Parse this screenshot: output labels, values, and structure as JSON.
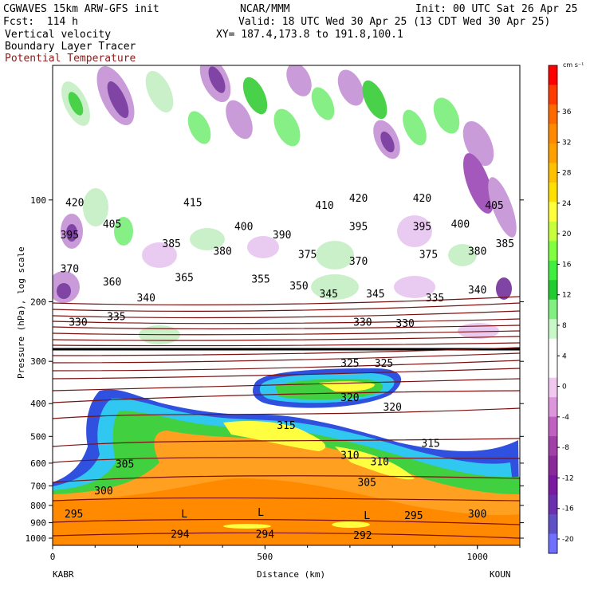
{
  "header": {
    "model": "CGWAVES 15km ARW-GFS init",
    "org": "NCAR/MMM",
    "init": "Init: 00 UTC Sat 26 Apr 25",
    "fcst": "Fcst:  114 h",
    "valid": "Valid: 18 UTC Wed 30 Apr 25 (13 CDT Wed 30 Apr 25)",
    "field1": "Vertical velocity",
    "field2": "Boundary Layer Tracer",
    "field3": "Potential Temperature",
    "xy": "XY= 187.4,173.8 to 191.8,100.1"
  },
  "colors": {
    "theta_line": "#7a1010",
    "field3_text": "#8b1a1a"
  },
  "chart_data": {
    "type": "heatmap",
    "title": "Vertical velocity",
    "xlabel": "Distance (km)",
    "ylabel": "Pressure (hPa), log scale",
    "xlim": [
      0,
      1100
    ],
    "ylim": [
      1050,
      40
    ],
    "x_ticks": [
      0,
      500,
      1000
    ],
    "y_ticks": [
      100,
      200,
      300,
      400,
      500,
      600,
      700,
      800,
      900,
      1000
    ],
    "endpoints": {
      "left": "KABR",
      "right": "KOUN"
    },
    "colorbar": {
      "unit": "cm s⁻¹",
      "tick_labels": [
        "36",
        "32",
        "28",
        "24",
        "20",
        "16",
        "12",
        "8",
        "4",
        "0",
        "-4",
        "-8",
        "-12",
        "-16",
        "-20"
      ],
      "colors": [
        "#ff0000",
        "#ff3b00",
        "#ff6a00",
        "#ff8a00",
        "#ffa000",
        "#ffc000",
        "#ffe000",
        "#ffff3c",
        "#c8ff3c",
        "#80ff40",
        "#40ee40",
        "#20cc30",
        "#80f080",
        "#c8f8c8",
        "#ffffff",
        "#ffffff",
        "#f0c8f0",
        "#dc96dc",
        "#c060c0",
        "#a040a8",
        "#8a2a9a",
        "#7a1aa0",
        "#6a30b0",
        "#6050c8",
        "#7070ff"
      ]
    },
    "theta_contour_labels": [
      {
        "label": "420",
        "x": 52,
        "p": 102
      },
      {
        "label": "415",
        "x": 330,
        "p": 102
      },
      {
        "label": "410",
        "x": 640,
        "p": 104
      },
      {
        "label": "420",
        "x": 720,
        "p": 99
      },
      {
        "label": "420",
        "x": 870,
        "p": 99
      },
      {
        "label": "405",
        "x": 1040,
        "p": 104
      },
      {
        "label": "405",
        "x": 140,
        "p": 118
      },
      {
        "label": "400",
        "x": 450,
        "p": 120
      },
      {
        "label": "395",
        "x": 720,
        "p": 120
      },
      {
        "label": "395",
        "x": 870,
        "p": 120
      },
      {
        "label": "400",
        "x": 960,
        "p": 118
      },
      {
        "label": "395",
        "x": 40,
        "p": 127
      },
      {
        "label": "390",
        "x": 540,
        "p": 127
      },
      {
        "label": "385",
        "x": 280,
        "p": 135
      },
      {
        "label": "385",
        "x": 1065,
        "p": 135
      },
      {
        "label": "380",
        "x": 400,
        "p": 142
      },
      {
        "label": "375",
        "x": 600,
        "p": 145
      },
      {
        "label": "375",
        "x": 885,
        "p": 145
      },
      {
        "label": "380",
        "x": 1000,
        "p": 142
      },
      {
        "label": "370",
        "x": 40,
        "p": 160
      },
      {
        "label": "370",
        "x": 720,
        "p": 152
      },
      {
        "label": "360",
        "x": 140,
        "p": 175
      },
      {
        "label": "365",
        "x": 310,
        "p": 170
      },
      {
        "label": "355",
        "x": 490,
        "p": 172
      },
      {
        "label": "350",
        "x": 580,
        "p": 180
      },
      {
        "label": "345",
        "x": 650,
        "p": 190
      },
      {
        "label": "345",
        "x": 760,
        "p": 190
      },
      {
        "label": "340",
        "x": 220,
        "p": 195
      },
      {
        "label": "340",
        "x": 1000,
        "p": 185
      },
      {
        "label": "335",
        "x": 900,
        "p": 195
      },
      {
        "label": "330",
        "x": 60,
        "p": 230
      },
      {
        "label": "330",
        "x": 730,
        "p": 230
      },
      {
        "label": "330",
        "x": 830,
        "p": 232
      },
      {
        "label": "335",
        "x": 150,
        "p": 222
      },
      {
        "label": "325",
        "x": 700,
        "p": 305
      },
      {
        "label": "325",
        "x": 780,
        "p": 305
      },
      {
        "label": "320",
        "x": 700,
        "p": 385
      },
      {
        "label": "320",
        "x": 800,
        "p": 410
      },
      {
        "label": "315",
        "x": 550,
        "p": 465
      },
      {
        "label": "315",
        "x": 890,
        "p": 525
      },
      {
        "label": "310",
        "x": 700,
        "p": 570
      },
      {
        "label": "310",
        "x": 770,
        "p": 595
      },
      {
        "label": "305",
        "x": 170,
        "p": 605
      },
      {
        "label": "305",
        "x": 740,
        "p": 685
      },
      {
        "label": "300",
        "x": 120,
        "p": 725
      },
      {
        "label": "300",
        "x": 1000,
        "p": 850
      },
      {
        "label": "295",
        "x": 50,
        "p": 850
      },
      {
        "label": "295",
        "x": 850,
        "p": 860
      },
      {
        "label": "294",
        "x": 300,
        "p": 975
      },
      {
        "label": "294",
        "x": 500,
        "p": 975
      },
      {
        "label": "292",
        "x": 730,
        "p": 985
      }
    ],
    "low_markers": [
      {
        "label": "L",
        "x": 310,
        "p": 850
      },
      {
        "label": "L",
        "x": 490,
        "p": 840
      },
      {
        "label": "L",
        "x": 740,
        "p": 860
      }
    ]
  }
}
